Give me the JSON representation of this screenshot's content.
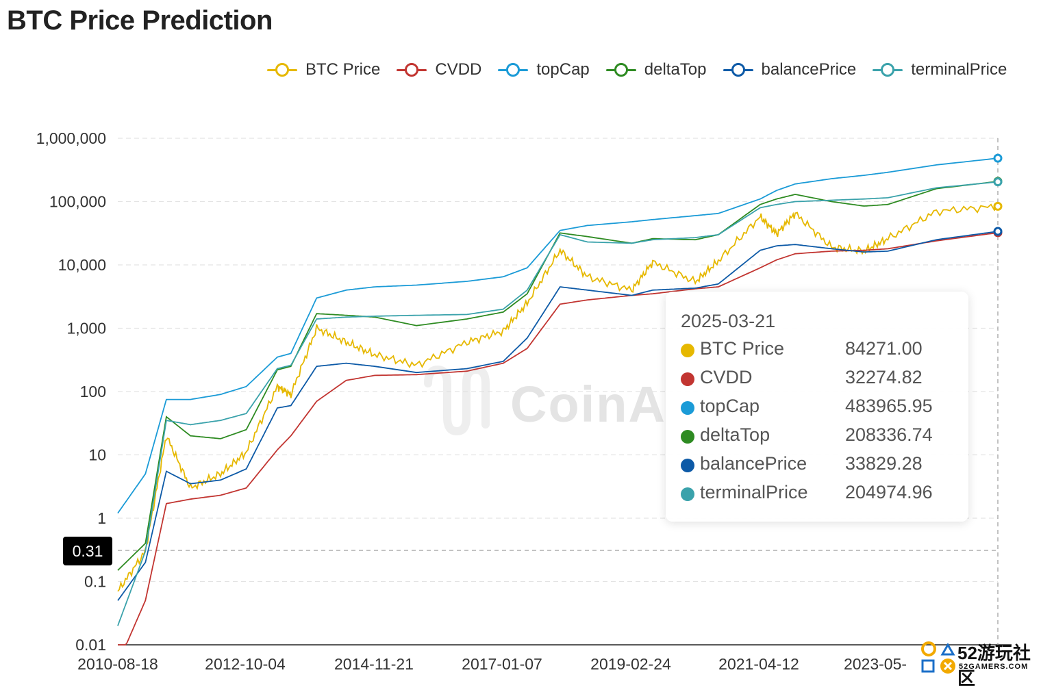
{
  "title": "BTC Price Prediction",
  "legend": [
    {
      "name": "BTC Price",
      "color": "#e6b800"
    },
    {
      "name": "CVDD",
      "color": "#c23531"
    },
    {
      "name": "topCap",
      "color": "#1b9bd7"
    },
    {
      "name": "deltaTop",
      "color": "#2e8b22"
    },
    {
      "name": "balancePrice",
      "color": "#0d5aa7"
    },
    {
      "name": "terminalPrice",
      "color": "#3aa2ab"
    }
  ],
  "tooltip": {
    "date": "2025-03-21",
    "rows": [
      {
        "name": "BTC Price",
        "value": "84271.00",
        "color": "#e6b800"
      },
      {
        "name": "CVDD",
        "value": "32274.82",
        "color": "#c23531"
      },
      {
        "name": "topCap",
        "value": "483965.95",
        "color": "#1b9bd7"
      },
      {
        "name": "deltaTop",
        "value": "208336.74",
        "color": "#2e8b22"
      },
      {
        "name": "balancePrice",
        "value": "33829.28",
        "color": "#0d5aa7"
      },
      {
        "name": "terminalPrice",
        "value": "204974.96",
        "color": "#3aa2ab"
      }
    ]
  },
  "crosshair_label": "0.31",
  "watermark": "CoinAnk",
  "site_badge": {
    "number": "52游玩社区",
    "url": "52GAMERS.COM"
  },
  "chart_data": {
    "type": "line",
    "y_scale": "log",
    "ylim": [
      0.01,
      1000000
    ],
    "y_ticks": [
      0.01,
      0.1,
      1,
      10,
      100,
      1000,
      10000,
      100000,
      1000000
    ],
    "y_tick_labels": [
      "0.01",
      "0.1",
      "1",
      "10",
      "100",
      "1,000",
      "10,000",
      "100,000",
      "1,000,000"
    ],
    "x_tick_labels": [
      "2010-08-18",
      "2012-10-04",
      "2014-11-21",
      "2017-01-07",
      "2019-02-24",
      "2021-04-12",
      "2023-05-"
    ],
    "x": [
      "2010-08-18",
      "2011-02-01",
      "2011-06-08",
      "2011-11-01",
      "2012-05-01",
      "2012-10-04",
      "2013-04-10",
      "2013-07-01",
      "2013-12-04",
      "2014-06-01",
      "2014-11-21",
      "2015-08-01",
      "2016-06-01",
      "2017-01-07",
      "2017-06-01",
      "2017-12-17",
      "2018-06-01",
      "2019-02-24",
      "2019-07-01",
      "2020-03-15",
      "2020-08-01",
      "2021-04-12",
      "2021-07-20",
      "2021-11-10",
      "2022-06-18",
      "2023-01-01",
      "2023-05-25",
      "2024-03-14",
      "2025-03-21"
    ],
    "series": [
      {
        "name": "BTC Price",
        "values": [
          0.07,
          0.3,
          20,
          3,
          5,
          11,
          120,
          90,
          1000,
          600,
          380,
          260,
          600,
          900,
          2500,
          17000,
          6500,
          4000,
          11000,
          5400,
          11500,
          58000,
          31000,
          65000,
          19000,
          16500,
          26000,
          70000,
          84271
        ]
      },
      {
        "name": "CVDD",
        "values": [
          0.005,
          0.05,
          1.7,
          2,
          2.3,
          3,
          12,
          20,
          70,
          150,
          180,
          185,
          210,
          280,
          480,
          2400,
          2800,
          3300,
          3500,
          4200,
          4500,
          9000,
          12000,
          15000,
          16500,
          17000,
          18000,
          24000,
          32274.82
        ]
      },
      {
        "name": "topCap",
        "values": [
          1.2,
          5,
          75,
          75,
          90,
          120,
          350,
          400,
          3000,
          4000,
          4500,
          4800,
          5500,
          6500,
          9000,
          35000,
          42000,
          48000,
          52000,
          60000,
          65000,
          110000,
          150000,
          190000,
          230000,
          260000,
          290000,
          380000,
          483965.95
        ]
      },
      {
        "name": "deltaTop",
        "values": [
          0.15,
          0.4,
          40,
          20,
          18,
          25,
          220,
          250,
          1700,
          1600,
          1500,
          1100,
          1400,
          1800,
          3500,
          32000,
          28000,
          22000,
          26000,
          25000,
          30000,
          90000,
          110000,
          130000,
          100000,
          85000,
          90000,
          160000,
          208336.74
        ]
      },
      {
        "name": "balancePrice",
        "values": [
          0.05,
          0.2,
          5.5,
          3.5,
          4,
          6,
          55,
          60,
          250,
          280,
          250,
          200,
          230,
          300,
          700,
          4500,
          4000,
          3300,
          4000,
          4300,
          5000,
          17000,
          20000,
          21000,
          18000,
          16000,
          16500,
          25000,
          33829.28
        ]
      },
      {
        "name": "terminalPrice",
        "values": [
          0.02,
          0.3,
          35,
          30,
          35,
          45,
          230,
          260,
          1400,
          1500,
          1550,
          1600,
          1650,
          2000,
          4000,
          30000,
          23000,
          22000,
          25000,
          27000,
          30000,
          80000,
          90000,
          100000,
          105000,
          110000,
          115000,
          165000,
          204974.96
        ]
      }
    ]
  }
}
